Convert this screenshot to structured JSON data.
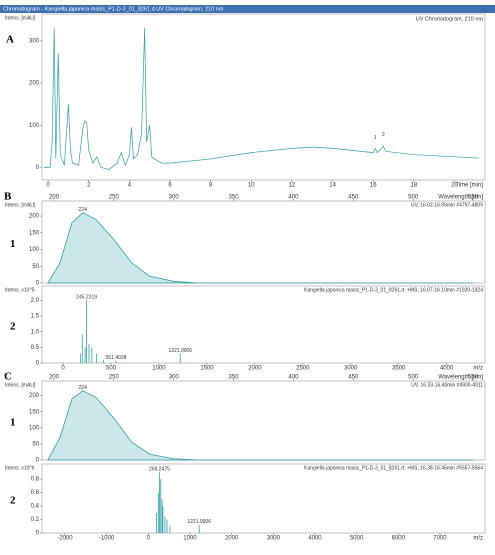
{
  "chart_data": [
    {
      "type": "line",
      "panel": "A",
      "title": "Chromatogram - Kangiella japonica masis_P1-D-3_01_8261.d UV Chromatogram, 210 nm",
      "legend": "UV Chromatogram, 210 nm",
      "ylabel": "Intens. [mAU]",
      "xlabel": "Time [min]",
      "color": "#2e9ea6",
      "xaxis": "bottom",
      "xlim": [
        -0.3,
        21.5
      ],
      "xticks": [
        0,
        2,
        4,
        6,
        8,
        10,
        12,
        14,
        16,
        18,
        20
      ],
      "ylim": [
        -30,
        340
      ],
      "yticks": [
        0,
        100,
        200,
        300
      ],
      "x": [
        -0.2,
        0.1,
        0.2,
        0.3,
        0.38,
        0.5,
        0.6,
        0.8,
        1.0,
        1.1,
        1.2,
        1.5,
        1.7,
        1.8,
        1.9,
        2.0,
        2.2,
        2.4,
        2.6,
        3.0,
        3.4,
        3.6,
        3.8,
        4.0,
        4.1,
        4.2,
        4.4,
        4.6,
        4.75,
        4.85,
        5.0,
        5.1,
        5.4,
        5.6,
        6,
        8,
        10,
        12,
        13,
        14,
        15,
        16,
        16.1,
        16.2,
        16.5,
        16.6,
        18,
        20,
        21.2
      ],
      "values": [
        0,
        0,
        60,
        330,
        20,
        270,
        30,
        5,
        150,
        40,
        10,
        5,
        90,
        110,
        105,
        40,
        10,
        25,
        0,
        -5,
        10,
        35,
        5,
        30,
        95,
        20,
        30,
        80,
        330,
        60,
        100,
        25,
        15,
        10,
        10,
        20,
        35,
        45,
        48,
        45,
        40,
        35,
        45,
        35,
        50,
        38,
        30,
        25,
        22
      ],
      "annotations": [
        {
          "text": "1",
          "x": 16.1,
          "y": 70
        },
        {
          "text": "2",
          "x": 16.5,
          "y": 78
        }
      ]
    },
    {
      "type": "area",
      "panel": "B",
      "row": "1",
      "title": "UV, 16.02-16.06min #4797-4809",
      "ylabel": "Intens. [mAU]",
      "xlabel": "Wavelength [nm]",
      "color": "#2e9ea6",
      "xaxis": "top",
      "xlim": [
        190,
        560
      ],
      "xticks": [
        200,
        250,
        300,
        350,
        400,
        450,
        500,
        550
      ],
      "ylim": [
        0,
        230
      ],
      "yticks": [
        0,
        50,
        100,
        150,
        200
      ],
      "x": [
        195,
        205,
        215,
        224,
        235,
        250,
        265,
        280,
        300,
        320,
        550
      ],
      "values": [
        0,
        60,
        180,
        210,
        190,
        130,
        60,
        20,
        5,
        0,
        0
      ],
      "peaks": [
        {
          "x": 224,
          "value": 210
        }
      ]
    },
    {
      "type": "stick",
      "row": "2",
      "title": "Kangiella japonica masis_P1-D-3_01_8261.d: +MS, 16.07-16.10min #1920-1924",
      "ylabel": "Intens. x10^5",
      "xlabel": "m/z",
      "color": "#2e9ea6",
      "xaxis": "bottom",
      "xlim": [
        -220,
        4400
      ],
      "xticks": [
        0,
        500,
        1000,
        1500,
        2000,
        2500,
        3000,
        3500,
        4000
      ],
      "ylim": [
        0,
        2.3
      ],
      "yticks": [
        0,
        0.5,
        {
          "value": 1,
          "label": "1.0"
        },
        1.5,
        {
          "value": 2,
          "label": "2.0"
        }
      ],
      "x": [
        180,
        200,
        230,
        270,
        300,
        350,
        420
      ],
      "values": [
        0.3,
        0.9,
        0.5,
        0.6,
        0.5,
        0.3,
        0.1
      ],
      "peaks": [
        {
          "x": 245.2319,
          "value": 2.0
        },
        {
          "x": 551.4028,
          "value": 0.08
        },
        {
          "x": 1221.9906,
          "value": 0.3
        }
      ]
    },
    {
      "type": "area",
      "panel": "C",
      "row": "1",
      "title": "UV, 16.33-16.40min #4900-4911",
      "ylabel": "Intens. [mAU]",
      "xlabel": "Wavelength [nm]",
      "color": "#2e9ea6",
      "xaxis": "top",
      "xlim": [
        190,
        560
      ],
      "xticks": [
        200,
        250,
        300,
        350,
        400,
        450,
        500,
        550
      ],
      "ylim": [
        0,
        230
      ],
      "yticks": [
        0,
        50,
        100,
        150,
        200
      ],
      "x": [
        195,
        205,
        215,
        224,
        235,
        250,
        265,
        280,
        300,
        320,
        550
      ],
      "values": [
        0,
        70,
        190,
        215,
        195,
        130,
        55,
        18,
        4,
        0,
        0
      ],
      "peaks": [
        {
          "x": 224,
          "value": 215
        }
      ]
    },
    {
      "type": "stick",
      "row": "2",
      "title": "Kangiella japonica masis_P1-D-3_01_8261.d: +MS, 16.38-16.46min #5557-5564",
      "ylabel": "Intens. x10^6",
      "xlabel": "m/z",
      "color": "#2e9ea6",
      "xaxis": "bottom",
      "xlim": [
        -2550,
        8080
      ],
      "xticks": [
        -2000,
        -1000,
        0,
        1000,
        2000,
        3000,
        4000,
        5000,
        6000,
        7000
      ],
      "ylim": [
        0,
        0.95
      ],
      "yticks": [
        0,
        0.2,
        0.4,
        0.6,
        0.8
      ],
      "x": [
        200,
        240,
        300,
        330,
        350,
        400,
        450,
        520
      ],
      "values": [
        0.3,
        0.6,
        0.8,
        0.5,
        0.4,
        0.25,
        0.2,
        0.1
      ],
      "peaks": [
        {
          "x": 269.2475,
          "value": 0.9
        },
        {
          "x": 1221.9906,
          "value": 0.12
        }
      ]
    }
  ]
}
